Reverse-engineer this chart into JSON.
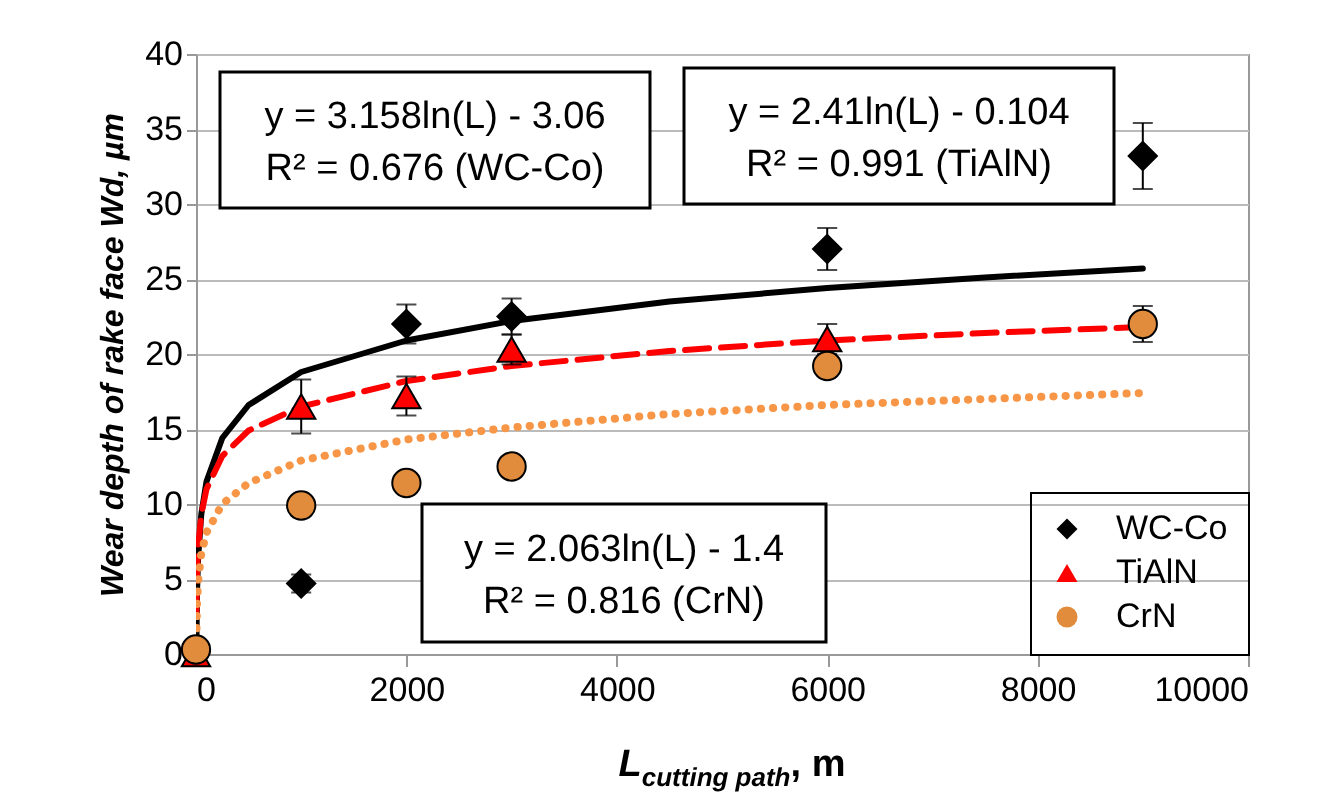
{
  "chart_data": {
    "type": "scatter",
    "xlabel": "L$_{cutting path}$, m",
    "ylabel": "Wear depth of rake face Wd, µm",
    "xlim": [
      0,
      10000
    ],
    "xticks": [
      0,
      2000,
      4000,
      6000,
      8000,
      10000
    ],
    "ylim": [
      0,
      40
    ],
    "yticks": [
      0,
      5,
      10,
      15,
      20,
      25,
      30,
      35,
      40
    ],
    "grid": "y",
    "legend": "bottom right",
    "x": [
      0,
      1000,
      2000,
      3000,
      6000,
      9000
    ],
    "series": [
      {
        "name": "WC-Co",
        "color": "#000000",
        "marker": "diamond",
        "values": [
          null,
          4.7,
          22,
          22.5,
          27,
          33.2
        ],
        "errors": [
          null,
          0.6,
          1.3,
          1.2,
          1.4,
          2.2
        ]
      },
      {
        "name": "TiAlN",
        "color": "#ff0000",
        "marker": "triangle",
        "values": [
          0,
          16.5,
          17.2,
          20.3,
          21,
          null
        ],
        "errors": [
          null,
          1.8,
          1.3,
          1,
          1,
          null
        ]
      },
      {
        "name": "CrN",
        "color": "#e08c3c",
        "marker": "circle",
        "values": [
          0.3,
          9.9,
          11.4,
          12.5,
          19.2,
          22
        ],
        "errors": [
          null,
          null,
          null,
          null,
          null,
          1.2
        ]
      },
      {
        "type": "line",
        "color": "#000000",
        "line_style": "solid",
        "marker": "none",
        "x": [
          3,
          10,
          20,
          50,
          100,
          250,
          500,
          1000,
          2000,
          3000,
          4500,
          6000,
          7500,
          9000
        ],
        "values": [
          0.4,
          4.2,
          6.4,
          9.3,
          11.5,
          14.4,
          16.6,
          18.8,
          20.9,
          22.2,
          23.5,
          24.4,
          25.1,
          25.7
        ]
      },
      {
        "type": "line",
        "color": "#ff0000",
        "line_style": "dashed",
        "marker": "none",
        "x": [
          3,
          10,
          20,
          50,
          100,
          250,
          500,
          1000,
          2000,
          3000,
          4500,
          6000,
          7500,
          9000
        ],
        "values": [
          2.5,
          5.5,
          7.1,
          9.3,
          11,
          13.2,
          14.9,
          16.5,
          18.2,
          19.2,
          20.2,
          20.9,
          21.4,
          21.8
        ]
      },
      {
        "type": "line",
        "color": "#f79646",
        "line_style": "dotted",
        "marker": "none",
        "x": [
          3,
          10,
          20,
          50,
          100,
          250,
          500,
          1000,
          2000,
          3000,
          4500,
          6000,
          7500,
          9000
        ],
        "values": [
          0.9,
          3.4,
          4.8,
          6.7,
          8.1,
          10,
          11.4,
          12.9,
          14.3,
          15.1,
          16,
          16.6,
          17,
          17.4
        ]
      }
    ],
    "annotations": [
      "y = 3.158ln(L) - 3.06\nR² = 0.676 (WC-Co)",
      "y = 2.41ln(L) - 0.104\nR² = 0.991 (TiAlN)",
      "y = 2.063ln(L) - 1.4\nR² = 0.816 (CrN)"
    ]
  }
}
